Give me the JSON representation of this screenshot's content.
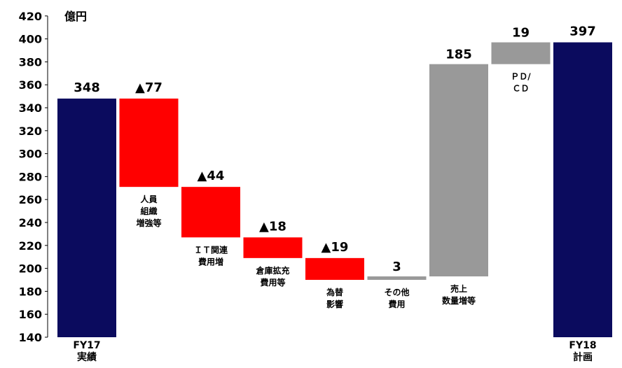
{
  "chart_data": {
    "type": "bar",
    "subtype": "waterfall",
    "unit_label": "億円",
    "ylim": [
      140,
      420
    ],
    "yticks": [
      140,
      160,
      180,
      200,
      220,
      240,
      260,
      280,
      300,
      320,
      340,
      360,
      380,
      400,
      420
    ],
    "grid": false,
    "colors": {
      "total": "#0b0b5e",
      "decrease": "#ff0000",
      "increase": "#999999"
    },
    "steps": [
      {
        "kind": "total",
        "start": 0,
        "end": 348,
        "value_label": "348",
        "category": [
          "FY17",
          "実績"
        ],
        "annotation": []
      },
      {
        "kind": "decrease",
        "start": 348,
        "end": 271,
        "value_label": "▲77",
        "category": [],
        "annotation": [
          "人員",
          "組織",
          "増強等"
        ]
      },
      {
        "kind": "decrease",
        "start": 271,
        "end": 227,
        "value_label": "▲44",
        "category": [],
        "annotation": [
          "ＩＴ関連",
          "費用増"
        ]
      },
      {
        "kind": "decrease",
        "start": 227,
        "end": 209,
        "value_label": "▲18",
        "category": [],
        "annotation": [
          "倉庫拡充",
          "費用等"
        ]
      },
      {
        "kind": "decrease",
        "start": 209,
        "end": 190,
        "value_label": "▲19",
        "category": [],
        "annotation": [
          "為替",
          "影響"
        ]
      },
      {
        "kind": "increase",
        "start": 190,
        "end": 193,
        "value_label": "3",
        "category": [],
        "annotation": [
          "その他",
          "費用"
        ]
      },
      {
        "kind": "increase",
        "start": 193,
        "end": 378,
        "value_label": "185",
        "category": [],
        "annotation": [
          "売上",
          "数量増等"
        ]
      },
      {
        "kind": "increase",
        "start": 378,
        "end": 397,
        "value_label": "19",
        "category": [],
        "annotation": [
          "ＰＤ/",
          "ＣＤ"
        ]
      },
      {
        "kind": "total",
        "start": 0,
        "end": 397,
        "value_label": "397",
        "category": [
          "FY18",
          "計画"
        ],
        "annotation": []
      }
    ]
  }
}
